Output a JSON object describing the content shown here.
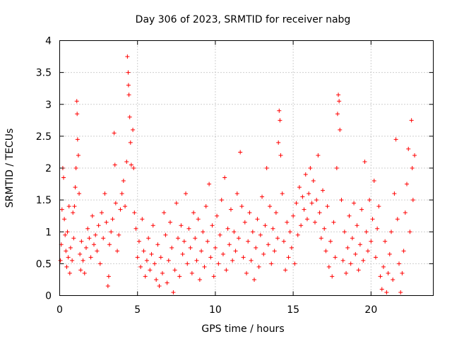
{
  "chart_data": {
    "type": "scatter",
    "title": "Day 306 of 2023, SRMTID for receiver nabg",
    "xlabel": "GPS time / hours",
    "ylabel": "SRMTID / TECUs",
    "xlim": [
      0,
      24
    ],
    "ylim": [
      0,
      4
    ],
    "xticks": [
      0,
      5,
      10,
      15,
      20
    ],
    "xtick_labels": [
      "0",
      "5",
      "10",
      "15",
      "20"
    ],
    "yticks": [
      0,
      0.5,
      1,
      1.5,
      2,
      2.5,
      3,
      3.5,
      4
    ],
    "ytick_labels": [
      "0",
      "0.5",
      "1",
      "1.5",
      "2",
      "2.5",
      "3",
      "3.5",
      "4"
    ],
    "grid": true,
    "marker": "+",
    "color": "#ff0000",
    "series": [
      {
        "name": "SRMTID",
        "points": [
          [
            0.05,
            0.55
          ],
          [
            0.1,
            0.8
          ],
          [
            0.15,
            1.35
          ],
          [
            0.2,
            2.0
          ],
          [
            0.25,
            1.85
          ],
          [
            0.3,
            1.2
          ],
          [
            0.35,
            0.95
          ],
          [
            0.4,
            0.7
          ],
          [
            0.45,
            0.45
          ],
          [
            0.5,
            1.0
          ],
          [
            0.55,
            0.6
          ],
          [
            0.6,
            1.4
          ],
          [
            0.65,
            0.35
          ],
          [
            0.7,
            0.75
          ],
          [
            0.8,
            0.55
          ],
          [
            0.85,
            1.3
          ],
          [
            0.9,
            0.9
          ],
          [
            0.95,
            1.4
          ],
          [
            1.0,
            1.7
          ],
          [
            1.05,
            2.0
          ],
          [
            1.1,
            3.05
          ],
          [
            1.12,
            2.85
          ],
          [
            1.15,
            2.45
          ],
          [
            1.2,
            2.2
          ],
          [
            1.25,
            1.6
          ],
          [
            1.3,
            0.65
          ],
          [
            1.35,
            0.4
          ],
          [
            1.4,
            0.85
          ],
          [
            1.5,
            0.55
          ],
          [
            1.6,
            0.35
          ],
          [
            1.7,
            0.75
          ],
          [
            1.8,
            1.05
          ],
          [
            1.9,
            0.9
          ],
          [
            2.0,
            0.6
          ],
          [
            2.1,
            1.25
          ],
          [
            2.2,
            0.8
          ],
          [
            2.3,
            0.95
          ],
          [
            2.4,
            0.7
          ],
          [
            2.5,
            1.1
          ],
          [
            2.6,
            0.5
          ],
          [
            2.7,
            1.3
          ],
          [
            2.8,
            0.9
          ],
          [
            2.9,
            1.6
          ],
          [
            3.0,
            1.15
          ],
          [
            3.1,
            0.15
          ],
          [
            3.15,
            0.3
          ],
          [
            3.2,
            0.8
          ],
          [
            3.3,
            1.0
          ],
          [
            3.4,
            1.2
          ],
          [
            3.5,
            2.55
          ],
          [
            3.55,
            2.05
          ],
          [
            3.6,
            1.45
          ],
          [
            3.7,
            0.7
          ],
          [
            3.8,
            0.95
          ],
          [
            3.9,
            1.35
          ],
          [
            4.0,
            1.6
          ],
          [
            4.1,
            1.8
          ],
          [
            4.2,
            1.4
          ],
          [
            4.3,
            2.1
          ],
          [
            4.35,
            3.75
          ],
          [
            4.4,
            3.5
          ],
          [
            4.42,
            3.3
          ],
          [
            4.45,
            3.15
          ],
          [
            4.5,
            2.8
          ],
          [
            4.55,
            2.4
          ],
          [
            4.6,
            2.05
          ],
          [
            4.7,
            2.6
          ],
          [
            4.75,
            2.0
          ],
          [
            4.8,
            1.3
          ],
          [
            4.9,
            1.05
          ],
          [
            5.0,
            0.6
          ],
          [
            5.1,
            0.85
          ],
          [
            5.2,
            0.45
          ],
          [
            5.3,
            1.2
          ],
          [
            5.4,
            0.7
          ],
          [
            5.5,
            0.3
          ],
          [
            5.6,
            0.55
          ],
          [
            5.7,
            0.9
          ],
          [
            5.8,
            0.4
          ],
          [
            5.9,
            0.65
          ],
          [
            6.0,
            1.1
          ],
          [
            6.1,
            0.5
          ],
          [
            6.2,
            0.25
          ],
          [
            6.3,
            0.8
          ],
          [
            6.4,
            0.15
          ],
          [
            6.5,
            0.6
          ],
          [
            6.6,
            0.35
          ],
          [
            6.7,
            1.3
          ],
          [
            6.8,
            0.95
          ],
          [
            6.9,
            0.2
          ],
          [
            7.0,
            0.55
          ],
          [
            7.1,
            1.15
          ],
          [
            7.2,
            0.75
          ],
          [
            7.3,
            0.05
          ],
          [
            7.4,
            0.4
          ],
          [
            7.5,
            1.45
          ],
          [
            7.6,
            0.9
          ],
          [
            7.7,
            0.3
          ],
          [
            7.8,
            1.1
          ],
          [
            7.9,
            0.65
          ],
          [
            8.0,
            0.85
          ],
          [
            8.1,
            1.6
          ],
          [
            8.2,
            0.5
          ],
          [
            8.3,
            1.05
          ],
          [
            8.4,
            0.75
          ],
          [
            8.5,
            0.35
          ],
          [
            8.6,
            1.3
          ],
          [
            8.7,
            0.9
          ],
          [
            8.8,
            0.55
          ],
          [
            8.9,
            1.2
          ],
          [
            9.0,
            0.25
          ],
          [
            9.1,
            0.7
          ],
          [
            9.2,
            1.0
          ],
          [
            9.3,
            0.45
          ],
          [
            9.4,
            1.4
          ],
          [
            9.5,
            0.85
          ],
          [
            9.6,
            1.75
          ],
          [
            9.7,
            0.6
          ],
          [
            9.8,
            1.1
          ],
          [
            9.9,
            0.3
          ],
          [
            10.0,
            0.75
          ],
          [
            10.1,
            1.25
          ],
          [
            10.2,
            0.5
          ],
          [
            10.3,
            0.95
          ],
          [
            10.4,
            1.5
          ],
          [
            10.5,
            0.65
          ],
          [
            10.6,
            1.85
          ],
          [
            10.7,
            0.4
          ],
          [
            10.8,
            1.05
          ],
          [
            10.9,
            0.8
          ],
          [
            11.0,
            1.35
          ],
          [
            11.1,
            0.55
          ],
          [
            11.2,
            1.0
          ],
          [
            11.3,
            0.7
          ],
          [
            11.4,
            1.6
          ],
          [
            11.5,
            0.9
          ],
          [
            11.6,
            2.25
          ],
          [
            11.7,
            1.4
          ],
          [
            11.8,
            0.6
          ],
          [
            11.9,
            1.15
          ],
          [
            12.0,
            0.35
          ],
          [
            12.1,
            0.85
          ],
          [
            12.2,
            1.3
          ],
          [
            12.3,
            0.55
          ],
          [
            12.4,
            1.0
          ],
          [
            12.5,
            0.25
          ],
          [
            12.6,
            0.75
          ],
          [
            12.7,
            1.2
          ],
          [
            12.8,
            0.45
          ],
          [
            12.9,
            0.95
          ],
          [
            13.0,
            1.55
          ],
          [
            13.1,
            0.65
          ],
          [
            13.2,
            1.1
          ],
          [
            13.3,
            2.0
          ],
          [
            13.4,
            0.8
          ],
          [
            13.5,
            1.4
          ],
          [
            13.6,
            0.5
          ],
          [
            13.7,
            1.05
          ],
          [
            13.8,
            0.7
          ],
          [
            13.9,
            1.3
          ],
          [
            14.0,
            0.9
          ],
          [
            14.05,
            2.4
          ],
          [
            14.1,
            2.9
          ],
          [
            14.15,
            2.75
          ],
          [
            14.2,
            2.2
          ],
          [
            14.3,
            1.6
          ],
          [
            14.4,
            0.85
          ],
          [
            14.5,
            0.4
          ],
          [
            14.6,
            1.15
          ],
          [
            14.7,
            0.6
          ],
          [
            14.8,
            1.0
          ],
          [
            14.9,
            0.75
          ],
          [
            15.0,
            1.25
          ],
          [
            15.1,
            0.5
          ],
          [
            15.2,
            1.45
          ],
          [
            15.3,
            0.95
          ],
          [
            15.4,
            1.7
          ],
          [
            15.5,
            1.1
          ],
          [
            15.6,
            1.55
          ],
          [
            15.7,
            1.35
          ],
          [
            15.8,
            1.9
          ],
          [
            15.9,
            1.2
          ],
          [
            16.0,
            1.6
          ],
          [
            16.1,
            2.0
          ],
          [
            16.2,
            1.45
          ],
          [
            16.3,
            1.8
          ],
          [
            16.4,
            1.15
          ],
          [
            16.5,
            1.5
          ],
          [
            16.6,
            2.2
          ],
          [
            16.7,
            1.3
          ],
          [
            16.8,
            0.9
          ],
          [
            16.9,
            1.65
          ],
          [
            17.0,
            1.05
          ],
          [
            17.1,
            0.7
          ],
          [
            17.2,
            1.4
          ],
          [
            17.3,
            0.45
          ],
          [
            17.4,
            0.85
          ],
          [
            17.5,
            0.3
          ],
          [
            17.6,
            1.15
          ],
          [
            17.7,
            0.6
          ],
          [
            17.8,
            2.0
          ],
          [
            17.85,
            2.85
          ],
          [
            17.9,
            3.15
          ],
          [
            17.95,
            3.05
          ],
          [
            18.0,
            2.6
          ],
          [
            18.1,
            1.5
          ],
          [
            18.2,
            0.55
          ],
          [
            18.3,
            1.0
          ],
          [
            18.4,
            0.35
          ],
          [
            18.5,
            0.75
          ],
          [
            18.6,
            1.25
          ],
          [
            18.7,
            0.5
          ],
          [
            18.8,
            0.9
          ],
          [
            18.9,
            1.45
          ],
          [
            19.0,
            0.65
          ],
          [
            19.1,
            1.1
          ],
          [
            19.2,
            0.4
          ],
          [
            19.3,
            0.8
          ],
          [
            19.4,
            1.35
          ],
          [
            19.5,
            0.55
          ],
          [
            19.6,
            2.1
          ],
          [
            19.7,
            1.0
          ],
          [
            19.8,
            0.7
          ],
          [
            19.9,
            1.5
          ],
          [
            20.0,
            0.85
          ],
          [
            20.1,
            1.2
          ],
          [
            20.2,
            1.8
          ],
          [
            20.3,
            0.6
          ],
          [
            20.4,
            1.05
          ],
          [
            20.5,
            1.4
          ],
          [
            20.6,
            0.3
          ],
          [
            20.7,
            0.1
          ],
          [
            20.8,
            0.45
          ],
          [
            20.9,
            0.85
          ],
          [
            21.0,
            0.05
          ],
          [
            21.1,
            0.35
          ],
          [
            21.2,
            0.65
          ],
          [
            21.3,
            1.0
          ],
          [
            21.4,
            0.25
          ],
          [
            21.5,
            1.6
          ],
          [
            21.6,
            2.45
          ],
          [
            21.7,
            1.2
          ],
          [
            21.8,
            0.5
          ],
          [
            21.9,
            0.05
          ],
          [
            22.0,
            0.35
          ],
          [
            22.1,
            0.7
          ],
          [
            22.2,
            1.3
          ],
          [
            22.3,
            1.75
          ],
          [
            22.4,
            2.3
          ],
          [
            22.5,
            1.0
          ],
          [
            22.6,
            2.75
          ],
          [
            22.65,
            2.0
          ],
          [
            22.7,
            1.5
          ],
          [
            22.8,
            2.2
          ]
        ]
      }
    ]
  }
}
